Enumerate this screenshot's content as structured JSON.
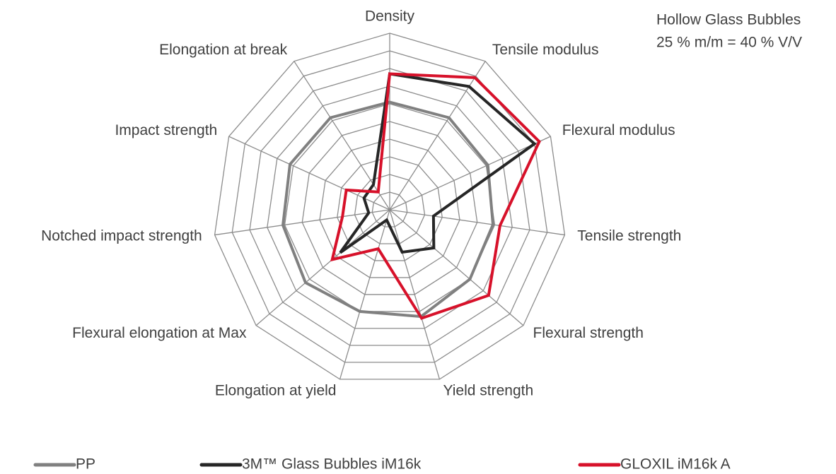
{
  "chart_data": {
    "type": "radar",
    "annotations": [
      "Hollow Glass Bubbles",
      "25 % m/m = 40 % V/V"
    ],
    "categories": [
      "Density",
      "Tensile modulus",
      "Flexural modulus",
      "Tensile strength",
      "Flexural strength",
      "Yield strength",
      "Elongation at yield",
      "Flexural elongation at Max",
      "Notched impact strength",
      "Impact strength",
      "Elongation at break"
    ],
    "series": [
      {
        "name": "PP",
        "color": "#808080",
        "values": [
          6.1,
          6.2,
          6.1,
          5.9,
          6.0,
          6.3,
          6.0,
          6.3,
          6.1,
          6.2,
          6.2
        ]
      },
      {
        "name": "3M™ Glass Bubbles iM16k",
        "color": "#262626",
        "values": [
          7.7,
          8.3,
          9.0,
          2.5,
          3.3,
          2.5,
          0.6,
          3.7,
          1.2,
          1.6,
          1.7
        ]
      },
      {
        "name": "GLOXIL iM16k A",
        "color": "#d7112a",
        "values": [
          7.7,
          8.9,
          9.3,
          6.3,
          7.4,
          6.4,
          2.3,
          4.3,
          2.7,
          2.7,
          1.2
        ]
      }
    ],
    "ylim": [
      0,
      10
    ],
    "yticks": [
      1,
      2,
      3,
      4,
      5,
      6,
      7,
      8,
      9,
      10
    ],
    "grid": true,
    "legend": "bottom"
  }
}
